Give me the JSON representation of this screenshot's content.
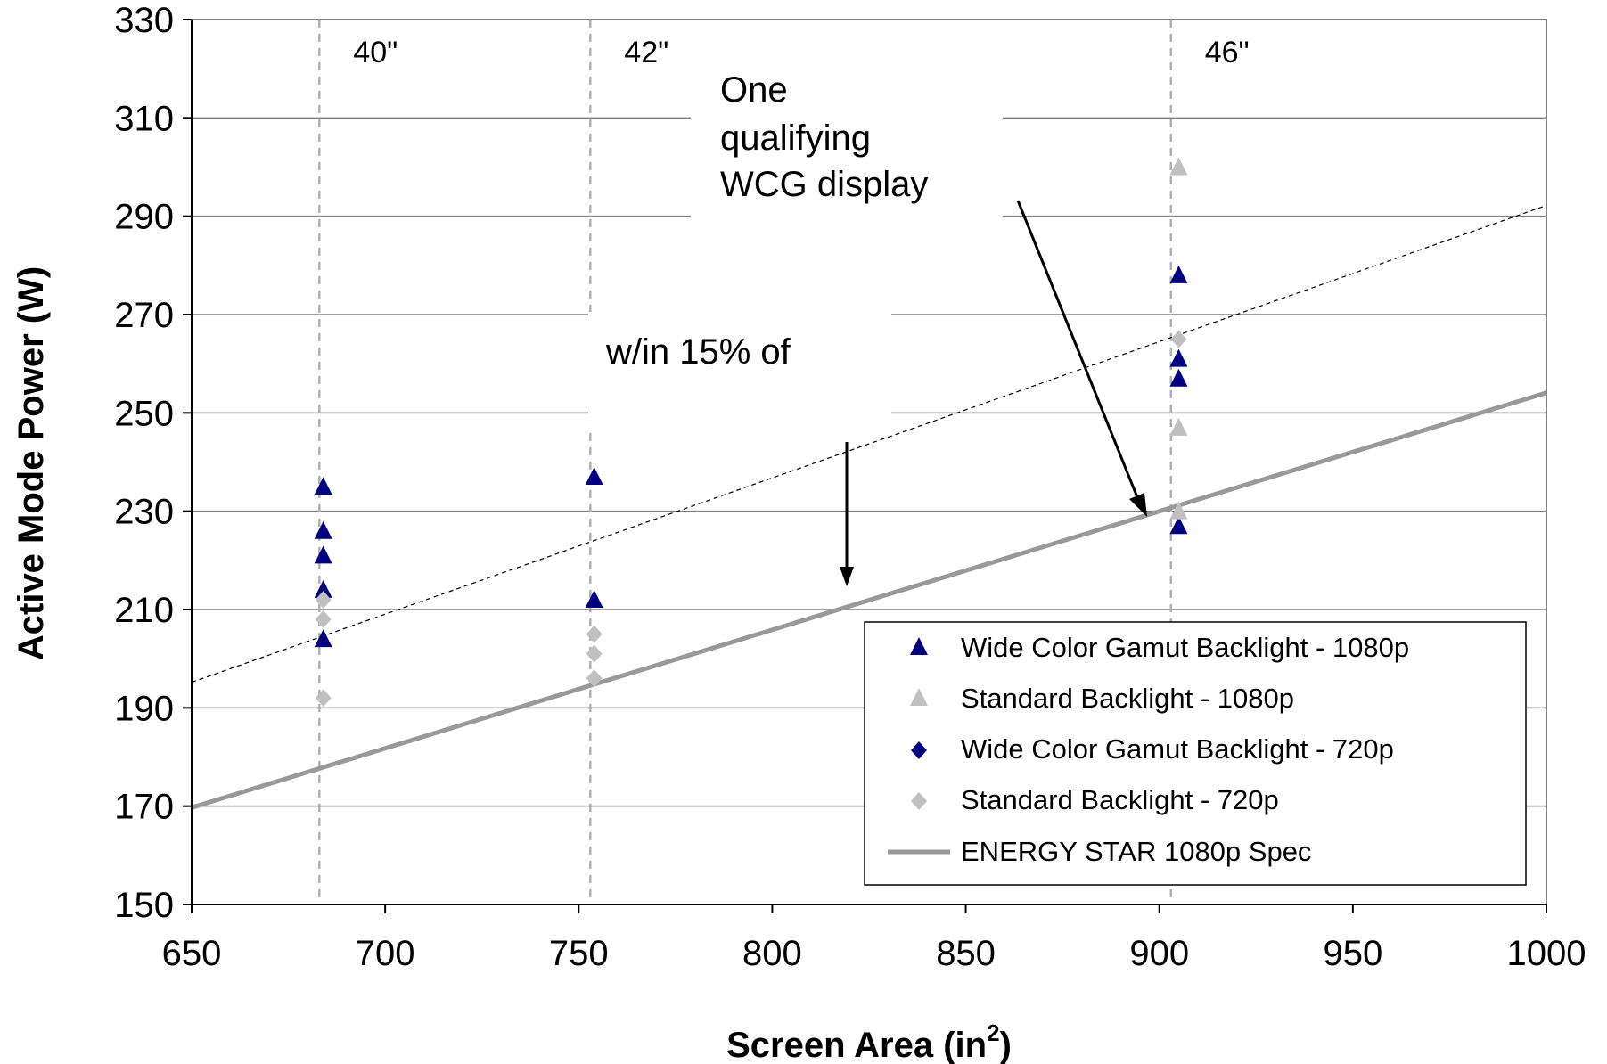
{
  "chart_data": {
    "type": "scatter",
    "xlabel_main": "Screen Area (in",
    "xlabel_sup": "2",
    "xlabel_end": ")",
    "ylabel": "Active Mode Power (W)",
    "xlim": [
      650,
      1000
    ],
    "ylim": [
      150,
      330
    ],
    "x_ticks": [
      650,
      700,
      750,
      800,
      850,
      900,
      950,
      1000
    ],
    "y_ticks": [
      150,
      170,
      190,
      210,
      230,
      250,
      270,
      290,
      310,
      330
    ],
    "grid": "horizontal",
    "legend_position": "bottom-right",
    "size_markers": [
      {
        "x": 683,
        "label": "40\""
      },
      {
        "x": 753,
        "label": "42\""
      },
      {
        "x": 903,
        "label": "46\""
      }
    ],
    "annotations": {
      "wcg_lines": [
        "One",
        "qualifying",
        "WCG display"
      ],
      "within_text": "w/in 15% of"
    },
    "series": [
      {
        "name": "Wide Color Gamut Backlight - 1080p",
        "marker": "triangle",
        "color": "#000080",
        "points": [
          [
            684,
            235
          ],
          [
            684,
            226
          ],
          [
            684,
            221
          ],
          [
            684,
            214
          ],
          [
            684,
            204
          ],
          [
            754,
            237
          ],
          [
            754,
            212
          ],
          [
            905,
            278
          ],
          [
            905,
            261
          ],
          [
            905,
            257
          ],
          [
            905,
            227
          ]
        ]
      },
      {
        "name": "Standard Backlight - 1080p",
        "marker": "triangle",
        "color": "#c0c0c0",
        "points": [
          [
            905,
            300
          ],
          [
            905,
            247
          ],
          [
            905,
            230
          ]
        ]
      },
      {
        "name": "Wide Color Gamut Backlight - 720p",
        "marker": "diamond",
        "color": "#000080",
        "points": []
      },
      {
        "name": "Standard Backlight - 720p",
        "marker": "diamond",
        "color": "#c0c0c0",
        "points": [
          [
            684,
            212
          ],
          [
            684,
            208
          ],
          [
            684,
            192
          ],
          [
            754,
            205
          ],
          [
            754,
            201
          ],
          [
            754,
            196
          ],
          [
            905,
            265
          ]
        ]
      },
      {
        "name": "ENERGY STAR 1080p Spec",
        "marker": "line",
        "color": "#999999",
        "points": [
          [
            650,
            169.7
          ],
          [
            1000,
            254.1
          ]
        ]
      }
    ],
    "reference_line": {
      "points": [
        [
          650,
          195.2
        ],
        [
          1000,
          292.2
        ]
      ],
      "color": "#000000",
      "style": "dashed"
    }
  }
}
